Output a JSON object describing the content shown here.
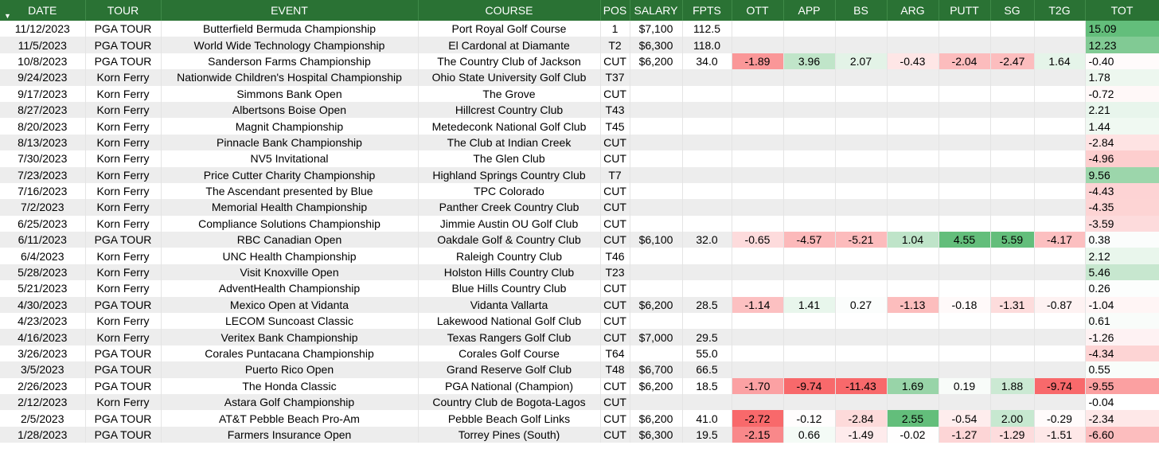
{
  "columns": [
    "DATE",
    "TOUR",
    "EVENT",
    "COURSE",
    "POS",
    "SALARY",
    "FPTS",
    "OTT",
    "APP",
    "BS",
    "ARG",
    "PUTT",
    "SG",
    "T2G",
    "TOT"
  ],
  "colors": {
    "header_bg": "#2a7234",
    "positive": "#63be7b",
    "negative": "#f8696b",
    "stripe": "#ededed"
  },
  "rows": [
    [
      "11/12/2023",
      "PGA TOUR",
      "Butterfield Bermuda Championship",
      "Port Royal Golf Course",
      "1",
      "$7,100",
      "112.5",
      "",
      "",
      "",
      "",
      "",
      "",
      "",
      "15.09"
    ],
    [
      "11/5/2023",
      "PGA TOUR",
      "World Wide Technology Championship",
      "El Cardonal at Diamante",
      "T2",
      "$6,300",
      "118.0",
      "",
      "",
      "",
      "",
      "",
      "",
      "",
      "12.23"
    ],
    [
      "10/8/2023",
      "PGA TOUR",
      "Sanderson Farms Championship",
      "The Country Club of Jackson",
      "CUT",
      "$6,200",
      "34.0",
      "-1.89",
      "3.96",
      "2.07",
      "-0.43",
      "-2.04",
      "-2.47",
      "1.64",
      "-0.40"
    ],
    [
      "9/24/2023",
      "Korn Ferry",
      "Nationwide Children's Hospital Championship",
      "Ohio State University Golf Club",
      "T37",
      "",
      "",
      "",
      "",
      "",
      "",
      "",
      "",
      "",
      "1.78"
    ],
    [
      "9/17/2023",
      "Korn Ferry",
      "Simmons Bank Open",
      "The Grove",
      "CUT",
      "",
      "",
      "",
      "",
      "",
      "",
      "",
      "",
      "",
      "-0.72"
    ],
    [
      "8/27/2023",
      "Korn Ferry",
      "Albertsons Boise Open",
      "Hillcrest Country Club",
      "T43",
      "",
      "",
      "",
      "",
      "",
      "",
      "",
      "",
      "",
      "2.21"
    ],
    [
      "8/20/2023",
      "Korn Ferry",
      "Magnit Championship",
      "Metedeconk National Golf Club",
      "T45",
      "",
      "",
      "",
      "",
      "",
      "",
      "",
      "",
      "",
      "1.44"
    ],
    [
      "8/13/2023",
      "Korn Ferry",
      "Pinnacle Bank Championship",
      "The Club at Indian Creek",
      "CUT",
      "",
      "",
      "",
      "",
      "",
      "",
      "",
      "",
      "",
      "-2.84"
    ],
    [
      "7/30/2023",
      "Korn Ferry",
      "NV5 Invitational",
      "The Glen Club",
      "CUT",
      "",
      "",
      "",
      "",
      "",
      "",
      "",
      "",
      "",
      "-4.96"
    ],
    [
      "7/23/2023",
      "Korn Ferry",
      "Price Cutter Charity Championship",
      "Highland Springs Country Club",
      "T7",
      "",
      "",
      "",
      "",
      "",
      "",
      "",
      "",
      "",
      "9.56"
    ],
    [
      "7/16/2023",
      "Korn Ferry",
      "The Ascendant presented by Blue",
      "TPC Colorado",
      "CUT",
      "",
      "",
      "",
      "",
      "",
      "",
      "",
      "",
      "",
      "-4.43"
    ],
    [
      "7/2/2023",
      "Korn Ferry",
      "Memorial Health Championship",
      "Panther Creek Country Club",
      "CUT",
      "",
      "",
      "",
      "",
      "",
      "",
      "",
      "",
      "",
      "-4.35"
    ],
    [
      "6/25/2023",
      "Korn Ferry",
      "Compliance Solutions Championship",
      "Jimmie Austin OU Golf Club",
      "CUT",
      "",
      "",
      "",
      "",
      "",
      "",
      "",
      "",
      "",
      "-3.59"
    ],
    [
      "6/11/2023",
      "PGA TOUR",
      "RBC Canadian Open",
      "Oakdale Golf & Country Club",
      "CUT",
      "$6,100",
      "32.0",
      "-0.65",
      "-4.57",
      "-5.21",
      "1.04",
      "4.55",
      "5.59",
      "-4.17",
      "0.38"
    ],
    [
      "6/4/2023",
      "Korn Ferry",
      "UNC Health Championship",
      "Raleigh Country Club",
      "T46",
      "",
      "",
      "",
      "",
      "",
      "",
      "",
      "",
      "",
      "2.12"
    ],
    [
      "5/28/2023",
      "Korn Ferry",
      "Visit Knoxville Open",
      "Holston Hills Country Club",
      "T23",
      "",
      "",
      "",
      "",
      "",
      "",
      "",
      "",
      "",
      "5.46"
    ],
    [
      "5/21/2023",
      "Korn Ferry",
      "AdventHealth Championship",
      "Blue Hills Country Club",
      "CUT",
      "",
      "",
      "",
      "",
      "",
      "",
      "",
      "",
      "",
      "0.26"
    ],
    [
      "4/30/2023",
      "PGA TOUR",
      "Mexico Open at Vidanta",
      "Vidanta Vallarta",
      "CUT",
      "$6,200",
      "28.5",
      "-1.14",
      "1.41",
      "0.27",
      "-1.13",
      "-0.18",
      "-1.31",
      "-0.87",
      "-1.04"
    ],
    [
      "4/23/2023",
      "Korn Ferry",
      "LECOM Suncoast Classic",
      "Lakewood National Golf Club",
      "CUT",
      "",
      "",
      "",
      "",
      "",
      "",
      "",
      "",
      "",
      "0.61"
    ],
    [
      "4/16/2023",
      "Korn Ferry",
      "Veritex Bank Championship",
      "Texas Rangers Golf Club",
      "CUT",
      "$7,000",
      "29.5",
      "",
      "",
      "",
      "",
      "",
      "",
      "",
      "-1.26"
    ],
    [
      "3/26/2023",
      "PGA TOUR",
      "Corales Puntacana Championship",
      "Corales Golf Course",
      "T64",
      "",
      "55.0",
      "",
      "",
      "",
      "",
      "",
      "",
      "",
      "-4.34"
    ],
    [
      "3/5/2023",
      "PGA TOUR",
      "Puerto Rico Open",
      "Grand Reserve Golf Club",
      "T48",
      "$6,700",
      "66.5",
      "",
      "",
      "",
      "",
      "",
      "",
      "",
      "0.55"
    ],
    [
      "2/26/2023",
      "PGA TOUR",
      "The Honda Classic",
      "PGA National (Champion)",
      "CUT",
      "$6,200",
      "18.5",
      "-1.70",
      "-9.74",
      "-11.43",
      "1.69",
      "0.19",
      "1.88",
      "-9.74",
      "-9.55"
    ],
    [
      "2/12/2023",
      "Korn Ferry",
      "Astara Golf Championship",
      "Country Club de Bogota-Lagos",
      "CUT",
      "",
      "",
      "",
      "",
      "",
      "",
      "",
      "",
      "",
      "-0.04"
    ],
    [
      "2/5/2023",
      "PGA TOUR",
      "AT&T Pebble Beach Pro-Am",
      "Pebble Beach Golf Links",
      "CUT",
      "$6,200",
      "41.0",
      "-2.72",
      "-0.12",
      "-2.84",
      "2.55",
      "-0.54",
      "2.00",
      "-0.29",
      "-2.34"
    ],
    [
      "1/28/2023",
      "PGA TOUR",
      "Farmers Insurance Open",
      "Torrey Pines (South)",
      "CUT",
      "$6,300",
      "19.5",
      "-2.15",
      "0.66",
      "-1.49",
      "-0.02",
      "-1.27",
      "-1.29",
      "-1.51",
      "-6.60"
    ]
  ]
}
